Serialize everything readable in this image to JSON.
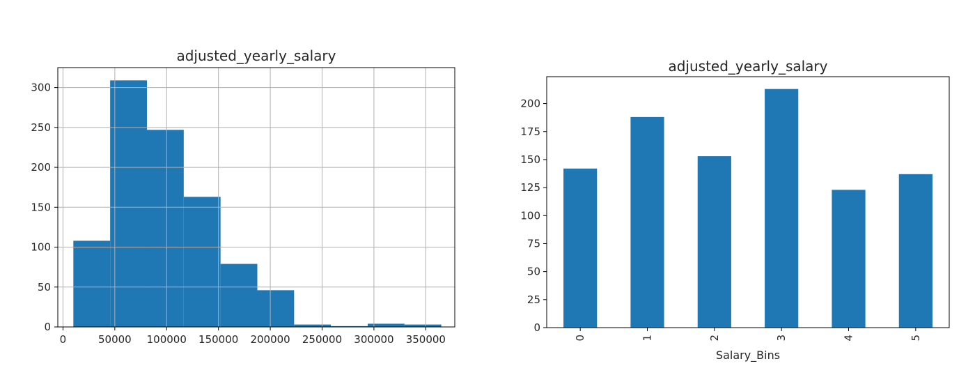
{
  "chart_data": [
    {
      "type": "bar",
      "subtype": "histogram",
      "title": "adjusted_yearly_salary",
      "xlabel": "",
      "ylabel": "",
      "xlim": [
        -5000,
        378000
      ],
      "ylim": [
        0,
        325
      ],
      "grid": true,
      "bins": [
        {
          "x0": 10000,
          "x1": 45500,
          "count": 108
        },
        {
          "x0": 45500,
          "x1": 81000,
          "count": 309
        },
        {
          "x0": 81000,
          "x1": 116500,
          "count": 247
        },
        {
          "x0": 116500,
          "x1": 152000,
          "count": 163
        },
        {
          "x0": 152000,
          "x1": 187500,
          "count": 79
        },
        {
          "x0": 187500,
          "x1": 223000,
          "count": 46
        },
        {
          "x0": 223000,
          "x1": 258500,
          "count": 3
        },
        {
          "x0": 258500,
          "x1": 294000,
          "count": 1
        },
        {
          "x0": 294000,
          "x1": 329500,
          "count": 4
        },
        {
          "x0": 329500,
          "x1": 365000,
          "count": 3
        }
      ],
      "xticks": [
        0,
        50000,
        100000,
        150000,
        200000,
        250000,
        300000,
        350000
      ],
      "xtick_labels": [
        "0",
        "50000",
        "100000",
        "150000",
        "200000",
        "250000",
        "300000",
        "350000"
      ],
      "yticks": [
        0,
        50,
        100,
        150,
        200,
        250,
        300
      ],
      "ytick_labels": [
        "0",
        "50",
        "100",
        "150",
        "200",
        "250",
        "300"
      ],
      "color": "#1f77b4"
    },
    {
      "type": "bar",
      "title": "adjusted_yearly_salary",
      "xlabel": "Salary_Bins",
      "ylabel": "",
      "categories": [
        "0",
        "1",
        "2",
        "3",
        "4",
        "5"
      ],
      "values": [
        142,
        188,
        153,
        213,
        123,
        137
      ],
      "ylim": [
        0,
        224
      ],
      "grid": false,
      "yticks": [
        0,
        25,
        50,
        75,
        100,
        125,
        150,
        175,
        200
      ],
      "ytick_labels": [
        "0",
        "25",
        "50",
        "75",
        "100",
        "125",
        "150",
        "175",
        "200"
      ],
      "color": "#1f77b4"
    }
  ]
}
